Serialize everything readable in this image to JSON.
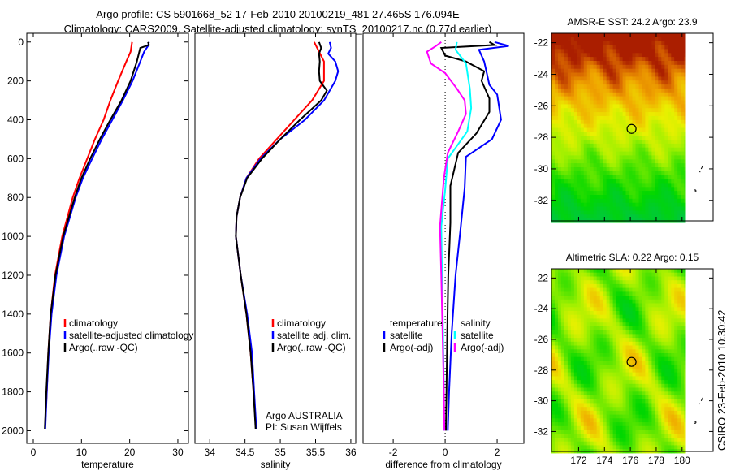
{
  "title_line1": "Argo profile: CS 5901668_52 17-Feb-2010 20100219_481 27.465S 176.094E",
  "title_line2": "Climatology: CARS2009. Satellite-adjusted climatology: synTS_20100217.nc (0.77d earlier)",
  "footer": "CSIRO 23-Feb-2010 10:30:42",
  "colors": {
    "climatology": "#ff0000",
    "satellite": "#0000ff",
    "argo": "#000000",
    "sal_satellite": "#00ffff",
    "sal_argo": "#ff00ff"
  },
  "chart_data": [
    {
      "type": "line",
      "id": "temperature",
      "xlabel": "temperature",
      "ylabel": "",
      "xlim": [
        -1.35,
        32.2
      ],
      "ylim": [
        -45,
        2065
      ],
      "y_reversed": true,
      "xticks": [
        0,
        10,
        20,
        30
      ],
      "yticks": [
        0,
        200,
        400,
        600,
        800,
        1000,
        1200,
        1400,
        1600,
        1800,
        2000
      ],
      "legend": [
        "climatology",
        "satellite-adjusted climatology",
        "Argo(..raw -QC)"
      ],
      "series": [
        {
          "name": "climatology",
          "color": "#ff0000",
          "depth": [
            0,
            50,
            100,
            200,
            300,
            400,
            500,
            600,
            700,
            800,
            1000,
            1200,
            1400,
            1600,
            1800,
            1950
          ],
          "values": [
            20.5,
            20.2,
            19.3,
            17.6,
            16.0,
            14.6,
            12.8,
            11.2,
            9.6,
            8.2,
            6.0,
            4.5,
            3.6,
            3.1,
            2.8,
            2.5
          ]
        },
        {
          "name": "satellite-adjusted climatology",
          "color": "#0000ff",
          "depth": [
            0,
            20,
            50,
            100,
            200,
            300,
            400,
            500,
            600,
            700,
            800,
            1000,
            1200,
            1400,
            1600,
            1800,
            1990
          ],
          "values": [
            24.0,
            23.8,
            23.0,
            22.2,
            20.6,
            18.6,
            16.4,
            14.2,
            12.2,
            10.3,
            8.8,
            6.4,
            4.8,
            3.8,
            3.2,
            2.8,
            2.5
          ]
        },
        {
          "name": "Argo(..raw -QC)",
          "color": "#000000",
          "depth": [
            0,
            15,
            30,
            50,
            100,
            200,
            300,
            400,
            500,
            600,
            700,
            800,
            1000,
            1200,
            1400,
            1600,
            1800,
            1990
          ],
          "values": [
            23.8,
            24.0,
            22.2,
            22.0,
            21.5,
            20.2,
            18.3,
            16.0,
            13.8,
            11.8,
            10.0,
            8.6,
            6.2,
            4.6,
            3.6,
            3.1,
            2.7,
            2.4
          ]
        }
      ]
    },
    {
      "type": "line",
      "id": "salinity",
      "xlabel": "salinity",
      "ylabel": "",
      "xlim": [
        33.79,
        36.07
      ],
      "ylim": [
        -45,
        2065
      ],
      "y_reversed": true,
      "xticks": [
        34,
        34.5,
        35,
        35.5,
        36
      ],
      "yticks": [],
      "legend": [
        "climatology",
        "satellite adj. clim.",
        "Argo(..raw -QC)"
      ],
      "annotation": [
        "Argo AUSTRALIA",
        "PI: Susan Wijffels"
      ],
      "series": [
        {
          "name": "climatology",
          "color": "#ff0000",
          "depth": [
            0,
            50,
            100,
            200,
            300,
            400,
            500,
            600,
            700,
            800,
            900,
            1000,
            1200,
            1400,
            1600,
            1800,
            1950
          ],
          "values": [
            35.48,
            35.55,
            35.62,
            35.62,
            35.45,
            35.2,
            34.95,
            34.7,
            34.52,
            34.43,
            34.38,
            34.37,
            34.44,
            34.52,
            34.58,
            34.62,
            34.65
          ]
        },
        {
          "name": "satellite adj. clim.",
          "color": "#0000ff",
          "depth": [
            0,
            30,
            60,
            100,
            150,
            200,
            300,
            400,
            500,
            600,
            700,
            800,
            900,
            1000,
            1200,
            1400,
            1600,
            1800,
            1990
          ],
          "values": [
            35.7,
            35.72,
            35.68,
            35.78,
            35.82,
            35.78,
            35.62,
            35.35,
            35.0,
            34.72,
            34.52,
            34.43,
            34.38,
            34.37,
            34.44,
            34.53,
            34.6,
            34.63,
            34.66
          ]
        },
        {
          "name": "Argo(..raw -QC)",
          "color": "#000000",
          "depth": [
            0,
            30,
            60,
            100,
            150,
            200,
            250,
            300,
            400,
            500,
            600,
            700,
            800,
            900,
            1000,
            1200,
            1400,
            1600,
            1800,
            1990
          ],
          "values": [
            35.55,
            35.58,
            35.55,
            35.56,
            35.55,
            35.56,
            35.66,
            35.58,
            35.28,
            35.0,
            34.74,
            34.53,
            34.43,
            34.38,
            34.37,
            34.44,
            34.52,
            34.58,
            34.62,
            34.65
          ]
        }
      ]
    },
    {
      "type": "line",
      "id": "difference",
      "xlabel": "difference from climatology",
      "ylabel": "",
      "xlim": [
        -3.16,
        3.03
      ],
      "ylim": [
        -45,
        2065
      ],
      "y_reversed": true,
      "xticks": [
        -2,
        0,
        2
      ],
      "yticks": [],
      "legend_headers": [
        "temperature",
        "salinity"
      ],
      "legend": [
        "satellite",
        "Argo(-adj)",
        "satellite",
        "Argo(-adj)"
      ],
      "series": [
        {
          "name": "temperature satellite",
          "color": "#0000ff",
          "depth": [
            0,
            20,
            40,
            100,
            220,
            270,
            400,
            500,
            590,
            750,
            950,
            1200,
            1500,
            1800,
            2000
          ],
          "values": [
            1.9,
            2.45,
            1.3,
            1.5,
            1.7,
            2.0,
            2.15,
            1.8,
            0.8,
            0.75,
            0.6,
            0.4,
            0.25,
            0.15,
            0.1
          ]
        },
        {
          "name": "temperature Argo(-adj)",
          "color": "#000000",
          "depth": [
            0,
            15,
            30,
            70,
            100,
            150,
            200,
            290,
            360,
            470,
            570,
            740,
            930,
            1200,
            1500,
            1800,
            2000
          ],
          "values": [
            1.7,
            1.9,
            -0.15,
            0.0,
            0.8,
            1.5,
            1.4,
            1.7,
            1.7,
            1.2,
            0.5,
            0.2,
            0.2,
            0.12,
            0.08,
            0.05,
            0.03
          ]
        },
        {
          "name": "salinity satellite",
          "color": "#00ffff",
          "depth": [
            0,
            40,
            110,
            240,
            340,
            460,
            600,
            760,
            950,
            1200,
            1500,
            1800,
            2000
          ],
          "values": [
            0.45,
            0.4,
            0.8,
            0.95,
            1.0,
            0.85,
            0.1,
            0.0,
            -0.15,
            -0.12,
            -0.08,
            -0.05,
            -0.05
          ]
        },
        {
          "name": "salinity Argo(-adj)",
          "color": "#ff00ff",
          "depth": [
            0,
            20,
            50,
            110,
            160,
            240,
            300,
            370,
            460,
            570,
            700,
            950,
            1200,
            1500,
            1800,
            2000
          ],
          "values": [
            -0.15,
            -0.35,
            -0.7,
            -0.55,
            0.0,
            0.45,
            0.75,
            0.8,
            0.5,
            0.1,
            -0.05,
            -0.2,
            -0.15,
            -0.1,
            -0.05,
            -0.03
          ]
        }
      ]
    },
    {
      "type": "heatmap",
      "id": "sst_map",
      "title": "AMSR-E SST: 24.2 Argo: 23.9",
      "xlim": [
        169.9,
        182.4
      ],
      "ylim": [
        -33.3,
        -21.4
      ],
      "xticks": [
        172,
        174,
        176,
        178,
        180
      ],
      "xtick_labels": [],
      "yticks": [
        -22,
        -24,
        -26,
        -28,
        -30,
        -32
      ],
      "ytick_labels": [
        "-22",
        "-24",
        "-26",
        "-28",
        "-30",
        "-32"
      ],
      "data_lon_max": 180.2,
      "marker": {
        "lon": 176.094,
        "lat": -27.465
      }
    },
    {
      "type": "heatmap",
      "id": "sla_map",
      "title": "Altimetric SLA: 0.22 Argo: 0.15",
      "xlim": [
        169.9,
        182.4
      ],
      "ylim": [
        -33.3,
        -21.4
      ],
      "xticks": [
        172,
        174,
        176,
        178,
        180
      ],
      "xtick_labels": [
        "172",
        "174",
        "176",
        "178",
        "180"
      ],
      "yticks": [
        -22,
        -24,
        -26,
        -28,
        -30,
        -32
      ],
      "ytick_labels": [
        "-22",
        "-24",
        "-26",
        "-28",
        "-30",
        "-32"
      ],
      "data_lon_max": 180.2,
      "marker": {
        "lon": 176.094,
        "lat": -27.465
      }
    }
  ]
}
